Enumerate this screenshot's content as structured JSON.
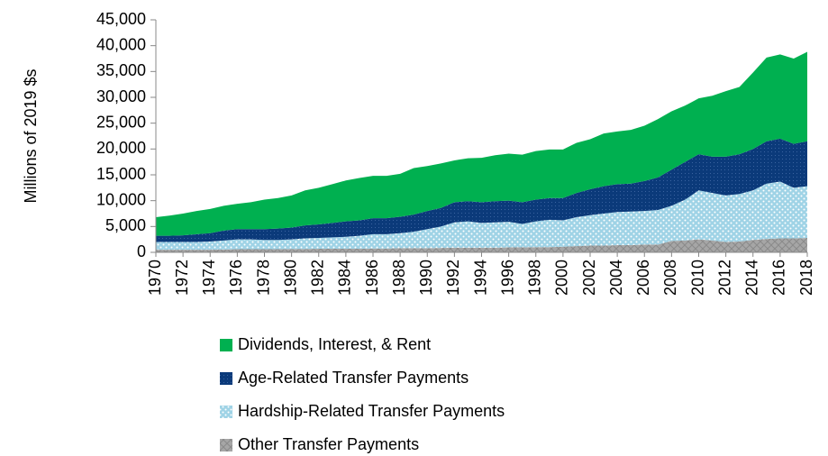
{
  "chart_data": {
    "type": "stacked-area",
    "y_label": "Millions of 2019 $s",
    "x": [
      1970,
      1971,
      1972,
      1973,
      1974,
      1975,
      1976,
      1977,
      1978,
      1979,
      1980,
      1981,
      1982,
      1983,
      1984,
      1985,
      1986,
      1987,
      1988,
      1989,
      1990,
      1991,
      1992,
      1993,
      1994,
      1995,
      1996,
      1997,
      1998,
      1999,
      2000,
      2001,
      2002,
      2003,
      2004,
      2005,
      2006,
      2007,
      2008,
      2009,
      2010,
      2011,
      2012,
      2013,
      2014,
      2015,
      2016,
      2017,
      2018
    ],
    "xlim": [
      1970,
      2018
    ],
    "xticks": [
      1970,
      1972,
      1974,
      1976,
      1978,
      1980,
      1982,
      1984,
      1986,
      1988,
      1990,
      1992,
      1994,
      1996,
      1998,
      2000,
      2002,
      2004,
      2006,
      2008,
      2010,
      2012,
      2014,
      2016,
      2018
    ],
    "ylim": [
      0,
      45000
    ],
    "yticks": [
      0,
      {
        "value": 5000,
        "label": "5,000"
      },
      {
        "value": 10000,
        "label": "10,000"
      },
      {
        "value": 15000,
        "label": "15,000"
      },
      {
        "value": 20000,
        "label": "20,000"
      },
      {
        "value": 25000,
        "label": "25,000"
      },
      {
        "value": 30000,
        "label": "30,000"
      },
      {
        "value": 35000,
        "label": "35,000"
      },
      {
        "value": 40000,
        "label": "40,000"
      },
      {
        "value": 45000,
        "label": "45,000"
      }
    ],
    "series": [
      {
        "name": "Other Transfer Payments",
        "color": "#a6a6a6",
        "values": [
          500,
          500,
          500,
          500,
          500,
          550,
          600,
          600,
          600,
          600,
          650,
          650,
          700,
          700,
          700,
          700,
          750,
          750,
          800,
          800,
          800,
          850,
          900,
          900,
          900,
          900,
          950,
          950,
          1000,
          1000,
          1100,
          1200,
          1300,
          1300,
          1400,
          1400,
          1500,
          1500,
          2200,
          2300,
          2500,
          2300,
          2000,
          2100,
          2400,
          2600,
          2700,
          2700,
          2800
        ]
      },
      {
        "name": "Hardship-Related Transfer Payments",
        "color": "#9fd3e6",
        "values": [
          1500,
          1500,
          1500,
          1500,
          1600,
          1750,
          1900,
          1900,
          1800,
          1800,
          1850,
          2050,
          2100,
          2200,
          2300,
          2500,
          2750,
          2750,
          2900,
          3200,
          3700,
          4150,
          4900,
          5100,
          4800,
          4900,
          4950,
          4550,
          5000,
          5300,
          5100,
          5600,
          5900,
          6200,
          6400,
          6500,
          6500,
          6700,
          6800,
          7900,
          9500,
          9200,
          9000,
          9200,
          9600,
          10700,
          11000,
          9800,
          10000
        ]
      },
      {
        "name": "Age-Related Transfer Payments",
        "color": "#0b3a7a",
        "values": [
          1200,
          1200,
          1300,
          1500,
          1600,
          1900,
          2000,
          2000,
          2100,
          2200,
          2300,
          2500,
          2600,
          2800,
          3000,
          3000,
          3100,
          3100,
          3200,
          3300,
          3500,
          3600,
          3900,
          3900,
          4000,
          4100,
          4100,
          4200,
          4200,
          4200,
          4300,
          4700,
          5000,
          5300,
          5400,
          5400,
          5800,
          6300,
          7000,
          7300,
          7000,
          7000,
          7500,
          7700,
          8000,
          8200,
          8300,
          8500,
          8700
        ]
      },
      {
        "name": "Dividends, Interest, & Rent",
        "color": "#00b050",
        "values": [
          3600,
          3900,
          4200,
          4500,
          4700,
          4800,
          4900,
          5200,
          5700,
          5900,
          6200,
          6800,
          7100,
          7500,
          7900,
          8200,
          8200,
          8200,
          8300,
          9000,
          8700,
          8600,
          8100,
          8300,
          8600,
          8900,
          9100,
          9200,
          9400,
          9400,
          9400,
          9700,
          9700,
          10200,
          10200,
          10400,
          10700,
          11300,
          11300,
          10900,
          10800,
          11800,
          12700,
          13000,
          14800,
          16200,
          16300,
          16500,
          17300
        ]
      }
    ]
  }
}
